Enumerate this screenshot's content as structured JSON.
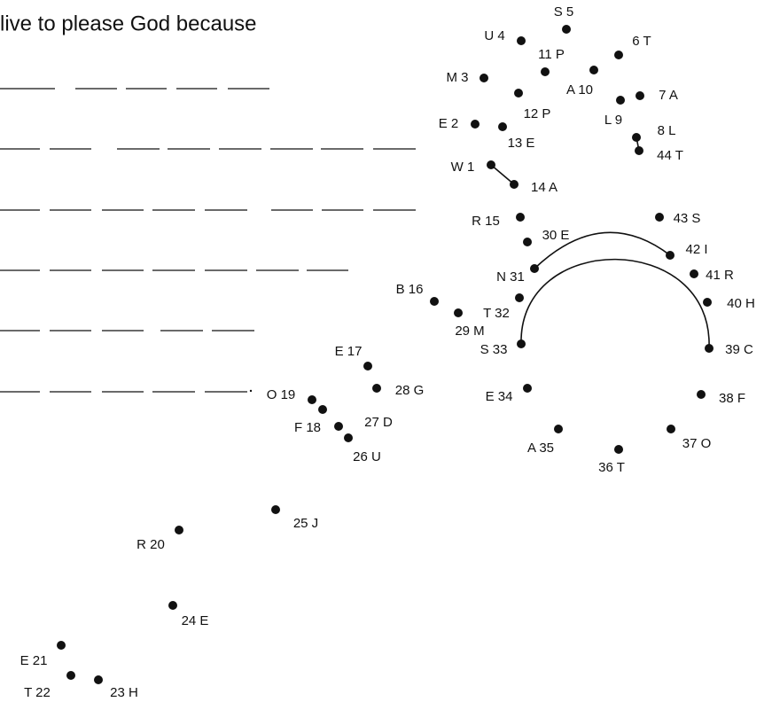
{
  "title": "live to please God because",
  "dots": [
    {
      "label": "W 1"
    },
    {
      "label": "E 2"
    },
    {
      "label": "M 3"
    },
    {
      "label": "U 4"
    },
    {
      "label": "S 5"
    },
    {
      "label": "6 T"
    },
    {
      "label": "7 A"
    },
    {
      "label": "8 L"
    },
    {
      "label": "L 9"
    },
    {
      "label": "A 10"
    },
    {
      "label": "11 P"
    },
    {
      "label": "12 P"
    },
    {
      "label": "13 E"
    },
    {
      "label": "14 A"
    },
    {
      "label": "R 15"
    },
    {
      "label": "B 16"
    },
    {
      "label": "E 17"
    },
    {
      "label": "F 18"
    },
    {
      "label": "O 19"
    },
    {
      "label": "R 20"
    },
    {
      "label": "E 21"
    },
    {
      "label": "T 22"
    },
    {
      "label": "23 H"
    },
    {
      "label": "24 E"
    },
    {
      "label": "25 J"
    },
    {
      "label": "26 U"
    },
    {
      "label": "27 D"
    },
    {
      "label": "28 G"
    },
    {
      "label": "29 M"
    },
    {
      "label": "30 E"
    },
    {
      "label": "N 31"
    },
    {
      "label": "T 32"
    },
    {
      "label": "S 33"
    },
    {
      "label": "E 34"
    },
    {
      "label": "A 35"
    },
    {
      "label": "36 T"
    },
    {
      "label": "37 O"
    },
    {
      "label": "38 F"
    },
    {
      "label": "39 C"
    },
    {
      "label": "40 H"
    },
    {
      "label": "41 R"
    },
    {
      "label": "42 I"
    },
    {
      "label": "43 S"
    },
    {
      "label": "44 T"
    }
  ]
}
